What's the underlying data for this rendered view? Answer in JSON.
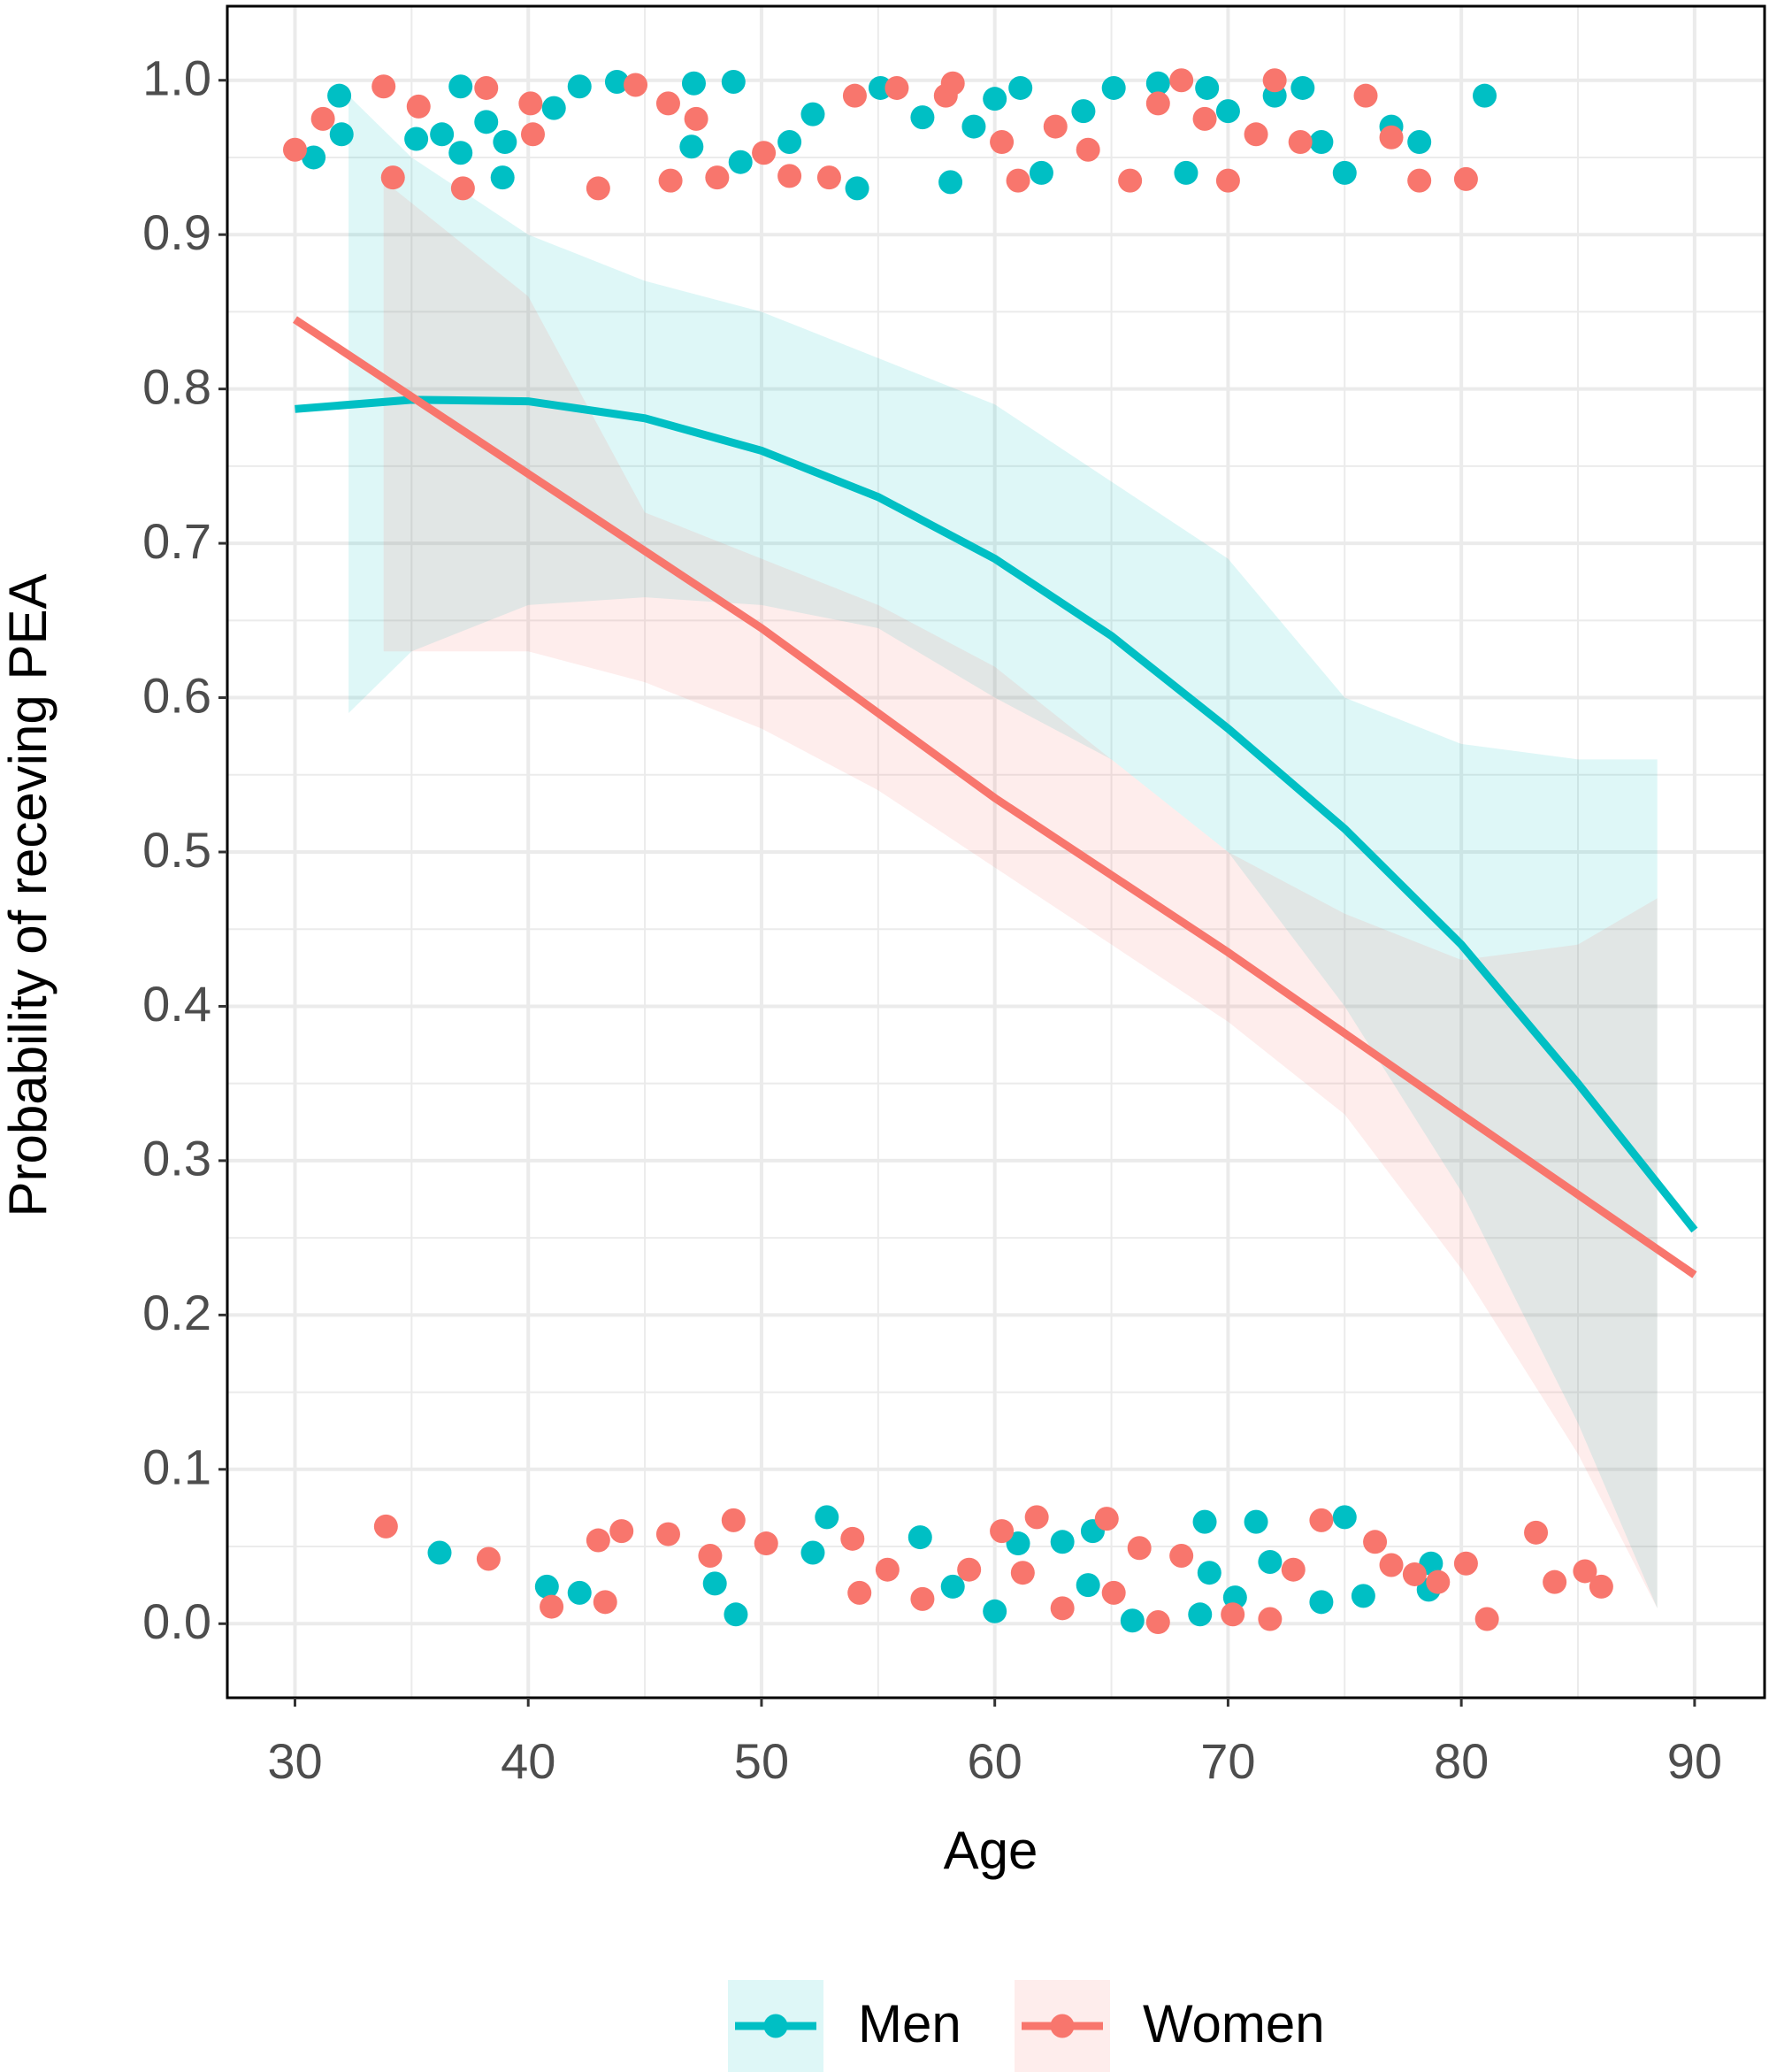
{
  "chart_data": {
    "type": "scatter",
    "xlabel": "Age",
    "ylabel": "Probability of receving PEA",
    "xlim": [
      27.1,
      93.0
    ],
    "ylim": [
      -0.048,
      1.048
    ],
    "xticks": [
      30,
      40,
      50,
      60,
      70,
      80,
      90
    ],
    "yticks": [
      {
        "value": 0,
        "label": "0.0"
      },
      0.1,
      0.2,
      0.3,
      0.4,
      0.5,
      0.6,
      0.7,
      0.8,
      0.9,
      {
        "value": 1,
        "label": "1.0"
      }
    ],
    "grid": true,
    "legend": "bottom",
    "series": [
      {
        "name": "Men",
        "color": "#00BFC4",
        "x": [
          30.8,
          31.9,
          32,
          35.2,
          36.3,
          37.1,
          37.1,
          38.2,
          38.9,
          39,
          41.1,
          42.2,
          43.8,
          47,
          47.1,
          48.8,
          49.1,
          51.2,
          52.2,
          54.1,
          55.1,
          56.9,
          58.1,
          59.1,
          60,
          61.1,
          62,
          63.8,
          65.1,
          67,
          68.2,
          69.1,
          70,
          72,
          73.2,
          74,
          75,
          77,
          78.2,
          81,
          36.2,
          40.8,
          42.2,
          48,
          48.9,
          52.2,
          52.8,
          56.8,
          58.2,
          60,
          61,
          62.9,
          64,
          64.2,
          65.9,
          68.8,
          69,
          69.2,
          70.3,
          71.2,
          71.8,
          74,
          75,
          75.8,
          78.7,
          78.6
        ],
        "values": [
          0.95,
          0.99,
          0.965,
          0.962,
          0.965,
          0.996,
          0.953,
          0.973,
          0.937,
          0.96,
          0.982,
          0.996,
          0.999,
          0.957,
          0.998,
          0.999,
          0.947,
          0.96,
          0.978,
          0.93,
          0.995,
          0.976,
          0.934,
          0.97,
          0.988,
          0.995,
          0.94,
          0.98,
          0.995,
          0.998,
          0.94,
          0.995,
          0.98,
          0.99,
          0.995,
          0.96,
          0.94,
          0.97,
          0.96,
          0.99,
          0.046,
          0.024,
          0.02,
          0.026,
          0.006,
          0.046,
          0.069,
          0.056,
          0.024,
          0.008,
          0.052,
          0.053,
          0.025,
          0.06,
          0.002,
          0.006,
          0.066,
          0.033,
          0.017,
          0.066,
          0.04,
          0.014,
          0.069,
          0.018,
          0.039,
          0.022
        ],
        "fit": {
          "x": [
            30,
            35,
            40,
            45,
            50,
            55,
            60,
            65,
            70,
            75,
            80,
            85,
            90
          ],
          "values": [
            0.787,
            0.793,
            0.792,
            0.781,
            0.76,
            0.73,
            0.69,
            0.64,
            0.58,
            0.515,
            0.44,
            0.35,
            0.255
          ]
        },
        "band": {
          "x": [
            32.3,
            35,
            40,
            45,
            50,
            55,
            60,
            65,
            70,
            75,
            80,
            85,
            88.4
          ],
          "lower": [
            0.59,
            0.63,
            0.66,
            0.665,
            0.66,
            0.645,
            0.6,
            0.56,
            0.5,
            0.4,
            0.28,
            0.13,
            0.01
          ],
          "upper": [
            0.99,
            0.95,
            0.9,
            0.87,
            0.85,
            0.82,
            0.79,
            0.74,
            0.69,
            0.6,
            0.57,
            0.56,
            0.56
          ]
        }
      },
      {
        "name": "Women",
        "color": "#F8766D",
        "x": [
          30,
          31.2,
          33.8,
          34.2,
          35.3,
          37.2,
          38.2,
          40.1,
          40.2,
          43,
          44.6,
          46,
          46.1,
          47.2,
          48.1,
          50.1,
          51.2,
          52.9,
          54,
          55.8,
          57.9,
          58.2,
          60.3,
          61,
          62.6,
          64,
          65.8,
          67,
          68,
          69,
          70,
          71.2,
          72,
          73.1,
          75.9,
          77,
          78.2,
          80.2,
          33.9,
          38.3,
          41,
          43,
          43.3,
          44,
          46,
          47.8,
          48.8,
          50.2,
          53.9,
          54.2,
          55.4,
          56.9,
          58.9,
          60.3,
          61.2,
          61.8,
          62.9,
          64.8,
          65.1,
          66.2,
          67,
          68,
          70.2,
          71.8,
          72.8,
          74,
          76.3,
          77,
          78,
          79,
          80.2,
          81.1,
          83.2,
          84,
          85.3,
          86
        ],
        "values": [
          0.955,
          0.975,
          0.996,
          0.937,
          0.983,
          0.93,
          0.995,
          0.985,
          0.965,
          0.93,
          0.997,
          0.985,
          0.935,
          0.975,
          0.937,
          0.953,
          0.938,
          0.937,
          0.99,
          0.995,
          0.99,
          0.998,
          0.96,
          0.935,
          0.97,
          0.955,
          0.935,
          0.985,
          1.0,
          0.975,
          0.935,
          0.965,
          1.0,
          0.96,
          0.99,
          0.963,
          0.935,
          0.936,
          0.063,
          0.042,
          0.011,
          0.054,
          0.014,
          0.06,
          0.058,
          0.044,
          0.067,
          0.052,
          0.055,
          0.02,
          0.035,
          0.016,
          0.035,
          0.06,
          0.033,
          0.069,
          0.01,
          0.068,
          0.02,
          0.049,
          0.001,
          0.044,
          0.006,
          0.003,
          0.035,
          0.067,
          0.053,
          0.038,
          0.032,
          0.027,
          0.039,
          0.003,
          0.059,
          0.027,
          0.034,
          0.024
        ],
        "fit": {
          "x": [
            30,
            40,
            50,
            60,
            70,
            80,
            90
          ],
          "values": [
            0.845,
            0.745,
            0.645,
            0.535,
            0.435,
            0.33,
            0.226
          ]
        },
        "band": {
          "x": [
            33.8,
            40,
            45,
            50,
            55,
            60,
            65,
            70,
            75,
            80,
            85,
            88.4
          ],
          "lower": [
            0.63,
            0.63,
            0.61,
            0.58,
            0.54,
            0.49,
            0.44,
            0.39,
            0.33,
            0.23,
            0.11,
            0.01
          ],
          "upper": [
            0.935,
            0.86,
            0.72,
            0.69,
            0.66,
            0.62,
            0.56,
            0.5,
            0.46,
            0.43,
            0.44,
            0.47
          ]
        }
      }
    ]
  }
}
